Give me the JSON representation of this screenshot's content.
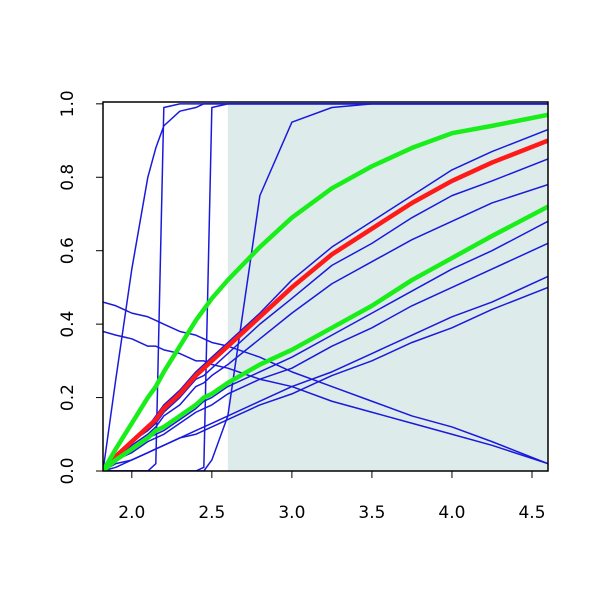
{
  "chart_data": {
    "type": "line",
    "x": [
      1.82,
      1.9,
      2.0,
      2.1,
      2.15,
      2.2,
      2.3,
      2.4,
      2.45,
      2.5,
      2.6,
      2.8,
      3.0,
      3.25,
      3.5,
      3.75,
      4.0,
      4.25,
      4.6
    ],
    "xlim": [
      1.82,
      4.6
    ],
    "ylim": [
      0,
      1.005
    ],
    "xticks": [
      {
        "value": 2.0,
        "label": "2.0"
      },
      2.5,
      {
        "value": 3.0,
        "label": "3.0"
      },
      3.5,
      {
        "value": 4.0,
        "label": "4.0"
      },
      4.5
    ],
    "yticks": [
      {
        "value": 0.0,
        "label": "0.0"
      },
      0.2,
      0.4,
      0.6,
      0.8,
      {
        "value": 1.0,
        "label": "1.0"
      }
    ],
    "shaded_region": {
      "xlim": [
        2.6,
        4.6
      ],
      "color": "#deebeb"
    },
    "series": [
      {
        "color": "#1a1adb",
        "width": 1.5,
        "values": [
          0,
          0.04,
          0.08,
          0.12,
          0.15,
          0.18,
          0.22,
          0.27,
          0.29,
          0.31,
          0.35,
          0.43,
          0.52,
          0.61,
          0.68,
          0.75,
          0.82,
          0.87,
          0.93
        ]
      },
      {
        "color": "#1a1adb",
        "width": 1.5,
        "values": [
          0,
          0.04,
          0.08,
          0.11,
          0.13,
          0.16,
          0.2,
          0.25,
          0.26,
          0.28,
          0.32,
          0.4,
          0.47,
          0.56,
          0.62,
          0.69,
          0.75,
          0.79,
          0.85
        ]
      },
      {
        "color": "#1a1adb",
        "width": 1.5,
        "values": [
          0,
          0.03,
          0.07,
          0.1,
          0.12,
          0.15,
          0.18,
          0.23,
          0.24,
          0.26,
          0.29,
          0.36,
          0.43,
          0.51,
          0.57,
          0.63,
          0.68,
          0.73,
          0.78
        ]
      },
      {
        "color": "#1a1adb",
        "width": 1.5,
        "values": [
          0,
          0.03,
          0.06,
          0.09,
          0.1,
          0.11,
          0.14,
          0.17,
          0.19,
          0.2,
          0.23,
          0.27,
          0.31,
          0.37,
          0.43,
          0.49,
          0.55,
          0.6,
          0.68
        ]
      },
      {
        "color": "#1a1adb",
        "width": 1.5,
        "values": [
          0,
          0.03,
          0.05,
          0.08,
          0.09,
          0.1,
          0.13,
          0.16,
          0.17,
          0.18,
          0.21,
          0.25,
          0.28,
          0.34,
          0.39,
          0.45,
          0.5,
          0.55,
          0.62
        ]
      },
      {
        "color": "#1a1adb",
        "width": 1.5,
        "values": [
          0,
          0.02,
          0.03,
          0.05,
          0.06,
          0.07,
          0.09,
          0.11,
          0.12,
          0.13,
          0.15,
          0.19,
          0.23,
          0.27,
          0.32,
          0.37,
          0.42,
          0.46,
          0.53
        ]
      },
      {
        "color": "#1a1adb",
        "width": 1.5,
        "values": [
          0,
          0.01,
          0.03,
          0.05,
          0.06,
          0.07,
          0.09,
          0.1,
          0.11,
          0.12,
          0.14,
          0.18,
          0.21,
          0.26,
          0.3,
          0.35,
          0.39,
          0.44,
          0.5
        ]
      },
      {
        "color": "#1a1adb",
        "width": 1.5,
        "values": [
          0.46,
          0.45,
          0.43,
          0.42,
          0.41,
          0.4,
          0.38,
          0.37,
          0.36,
          0.35,
          0.34,
          0.31,
          0.27,
          0.23,
          0.19,
          0.15,
          0.12,
          0.08,
          0.02
        ]
      },
      {
        "color": "#1a1adb",
        "width": 1.5,
        "values": [
          0.38,
          0.37,
          0.36,
          0.34,
          0.34,
          0.33,
          0.32,
          0.3,
          0.3,
          0.29,
          0.28,
          0.25,
          0.23,
          0.19,
          0.16,
          0.13,
          0.1,
          0.07,
          0.02
        ]
      },
      {
        "color": "#1a1adb",
        "width": 1.5,
        "values": [
          0,
          0,
          0,
          0,
          0.02,
          0.99,
          1,
          1,
          1,
          1,
          1,
          1,
          1,
          1,
          1,
          1,
          1,
          1,
          1
        ]
      },
      {
        "color": "#1a1adb",
        "width": 1.5,
        "values": [
          0,
          0.25,
          0.55,
          0.8,
          0.88,
          0.94,
          0.98,
          0.99,
          1,
          1,
          1,
          1,
          1,
          1,
          1,
          1,
          1,
          1,
          1
        ]
      },
      {
        "color": "#1a1adb",
        "width": 1.5,
        "values": [
          0,
          0,
          0,
          0,
          0,
          0,
          0,
          0,
          0.01,
          0.99,
          1,
          1,
          1,
          1,
          1,
          1,
          1,
          1,
          1
        ]
      },
      {
        "color": "#1a1adb",
        "width": 1.5,
        "values": [
          0,
          0,
          0,
          0,
          0,
          0,
          0,
          0,
          0,
          0.03,
          0.15,
          0.75,
          0.95,
          0.99,
          1,
          1,
          1,
          1,
          1
        ]
      },
      {
        "color": "#ff1a1a",
        "width": 4.5,
        "values": [
          0,
          0.04,
          0.08,
          0.12,
          0.14,
          0.17,
          0.21,
          0.26,
          0.28,
          0.3,
          0.34,
          0.42,
          0.5,
          0.59,
          0.66,
          0.73,
          0.79,
          0.84,
          0.9
        ]
      },
      {
        "color": "#1aee1a",
        "width": 4.5,
        "values": [
          0,
          0.06,
          0.13,
          0.2,
          0.23,
          0.27,
          0.34,
          0.41,
          0.44,
          0.47,
          0.52,
          0.61,
          0.69,
          0.77,
          0.83,
          0.88,
          0.92,
          0.94,
          0.97
        ]
      },
      {
        "color": "#1aee1a",
        "width": 4.5,
        "values": [
          0,
          0.03,
          0.06,
          0.09,
          0.11,
          0.12,
          0.15,
          0.18,
          0.2,
          0.21,
          0.24,
          0.29,
          0.33,
          0.39,
          0.45,
          0.52,
          0.58,
          0.64,
          0.72
        ]
      }
    ]
  }
}
